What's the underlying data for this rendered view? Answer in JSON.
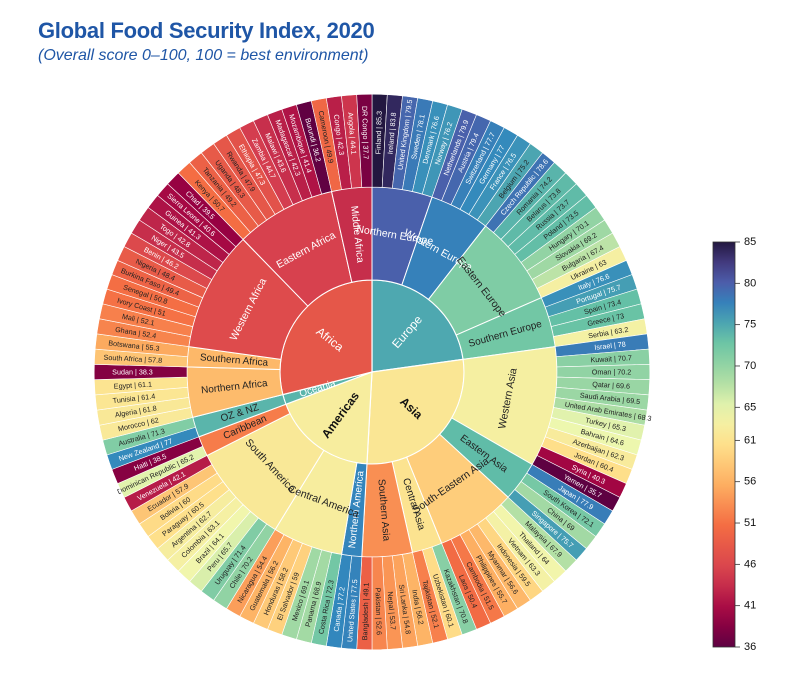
{
  "title": "Global Food Security Index, 2020",
  "subtitle": "(Overall score 0–100, 100 = best environment)",
  "chart_data": {
    "type": "sunburst",
    "title": "Global Food Security Index, 2020",
    "subtitle": "(Overall score 0–100, 100 = best environment)",
    "color_scale": {
      "min": 36,
      "max": 85,
      "ticks": [
        36,
        41,
        46,
        51,
        56,
        61,
        65,
        70,
        75,
        80,
        85
      ]
    },
    "continents": [
      {
        "name": "Europe",
        "regions": [
          {
            "name": "Northern Europe",
            "countries": [
              [
                "Finland",
                85.3
              ],
              [
                "Ireland",
                83.8
              ],
              [
                "United Kingdom",
                79.5
              ],
              [
                "Sweden",
                78.1
              ],
              [
                "Denmark",
                76.6
              ],
              [
                "Norway",
                76.2
              ]
            ]
          },
          {
            "name": "Western Europe",
            "countries": [
              [
                "Netherlands",
                79.9
              ],
              [
                "Austria",
                79.4
              ],
              [
                "Switzerland",
                77.7
              ],
              [
                "Germany",
                77
              ],
              [
                "France",
                76.5
              ],
              [
                "Belgium",
                75.2
              ]
            ]
          },
          {
            "name": "Eastern Europe",
            "countries": [
              [
                "Czech Republic",
                78.6
              ],
              [
                "Romania",
                74.2
              ],
              [
                "Belarus",
                73.8
              ],
              [
                "Russia",
                73.7
              ],
              [
                "Poland",
                73.5
              ],
              [
                "Hungary",
                70.1
              ],
              [
                "Slovakia",
                69.2
              ],
              [
                "Bulgaria",
                67.4
              ],
              [
                "Ukraine",
                63
              ]
            ]
          },
          {
            "name": "Southern Europe",
            "countries": [
              [
                "Italy",
                76.6
              ],
              [
                "Portugal",
                75.7
              ],
              [
                "Spain",
                73.4
              ],
              [
                "Greece",
                73
              ],
              [
                "Serbia",
                63.2
              ]
            ]
          }
        ]
      },
      {
        "name": "Asia",
        "regions": [
          {
            "name": "Western Asia",
            "countries": [
              [
                "Israel",
                78
              ],
              [
                "Kuwait",
                70.7
              ],
              [
                "Oman",
                70.2
              ],
              [
                "Qatar",
                69.6
              ],
              [
                "Saudi Arabia",
                69.5
              ],
              [
                "United Arab Emirates",
                68.3
              ],
              [
                "Turkey",
                65.3
              ],
              [
                "Bahrain",
                64.6
              ],
              [
                "Azerbaijan",
                62.3
              ],
              [
                "Jordan",
                60.4
              ],
              [
                "Syria",
                40.3
              ],
              [
                "Yemen",
                35.7
              ]
            ]
          },
          {
            "name": "Eastern Asia",
            "countries": [
              [
                "Japan",
                77.9
              ],
              [
                "South Korea",
                72.1
              ],
              [
                "China",
                69
              ],
              [
                "Singapore",
                75.7
              ]
            ]
          },
          {
            "name": "South-Eastern Asia",
            "countries": [
              [
                "Malaysia",
                67.9
              ],
              [
                "Thailand",
                64
              ],
              [
                "Vietnam",
                63.3
              ],
              [
                "Indonesia",
                59.5
              ],
              [
                "Myanmar",
                56.6
              ],
              [
                "Philippines",
                55.7
              ],
              [
                "Cambodia",
                51.5
              ],
              [
                "Laos",
                50.4
              ]
            ]
          },
          {
            "name": "Central Asia",
            "countries": [
              [
                "Kazakhstan",
                70.8
              ],
              [
                "Uzbekistan",
                60.1
              ],
              [
                "Tajikistan",
                52.1
              ]
            ]
          },
          {
            "name": "Southern Asia",
            "countries": [
              [
                "India",
                56.2
              ],
              [
                "Sri Lanka",
                54.8
              ],
              [
                "Nepal",
                53.7
              ],
              [
                "Pakistan",
                52.6
              ],
              [
                "Bangladesh",
                49.1
              ]
            ]
          }
        ]
      },
      {
        "name": "Americas",
        "regions": [
          {
            "name": "Northern America",
            "countries": [
              [
                "United States",
                77.5
              ],
              [
                "Canada",
                77.2
              ]
            ]
          },
          {
            "name": "Central America",
            "countries": [
              [
                "Costa Rica",
                72.3
              ],
              [
                "Panama",
                68.9
              ],
              [
                "Mexico",
                69.1
              ],
              [
                "El Salvador",
                59
              ],
              [
                "Honduras",
                58.2
              ],
              [
                "Guatemala",
                56.2
              ],
              [
                "Nicaragua",
                54.4
              ]
            ]
          },
          {
            "name": "South America",
            "countries": [
              [
                "Chile",
                70.2
              ],
              [
                "Uruguay",
                71.4
              ],
              [
                "Peru",
                65.7
              ],
              [
                "Brazil",
                64.1
              ],
              [
                "Colombia",
                63.1
              ],
              [
                "Argentina",
                62.7
              ],
              [
                "Paraguay",
                60.5
              ],
              [
                "Bolivia",
                60
              ],
              [
                "Ecuador",
                57.9
              ],
              [
                "Venezuela",
                42.1
              ]
            ]
          },
          {
            "name": "Caribbean",
            "countries": [
              [
                "Dominican Republic",
                65.2
              ],
              [
                "Haiti",
                38.5
              ]
            ]
          }
        ]
      },
      {
        "name": "Oceania",
        "regions": [
          {
            "name": "OZ & NZ",
            "countries": [
              [
                "New Zealand",
                77
              ],
              [
                "Australia",
                71.3
              ]
            ]
          }
        ]
      },
      {
        "name": "Africa",
        "regions": [
          {
            "name": "Northern Africa",
            "countries": [
              [
                "Morocco",
                62
              ],
              [
                "Algeria",
                61.8
              ],
              [
                "Tunisia",
                61.4
              ],
              [
                "Egypt",
                61.1
              ],
              [
                "Sudan",
                38.3
              ]
            ]
          },
          {
            "name": "Southern Africa",
            "countries": [
              [
                "South Africa",
                57.8
              ],
              [
                "Botswana",
                55.3
              ]
            ]
          },
          {
            "name": "Western Africa",
            "countries": [
              [
                "Ghana",
                52.4
              ],
              [
                "Mali",
                52.1
              ],
              [
                "Ivory Coast",
                51
              ],
              [
                "Senegal",
                50.8
              ],
              [
                "Burkina Faso",
                49.4
              ],
              [
                "Nigeria",
                48.4
              ],
              [
                "Benin",
                46.2
              ],
              [
                "Niger",
                43.5
              ],
              [
                "Togo",
                42.8
              ],
              [
                "Guinea",
                41.3
              ],
              [
                "Sierra Leone",
                40.6
              ],
              [
                "Chad",
                39.5
              ]
            ]
          },
          {
            "name": "Eastern Africa",
            "countries": [
              [
                "Kenya",
                50.7
              ],
              [
                "Tanzania",
                49.2
              ],
              [
                "Uganda",
                48.3
              ],
              [
                "Rwanda",
                47.9
              ],
              [
                "Ethiopia",
                47.3
              ],
              [
                "Zambia",
                44.7
              ],
              [
                "Malawi",
                43.6
              ],
              [
                "Madagascar",
                42.3
              ],
              [
                "Mozambique",
                41.4
              ],
              [
                "Burundi",
                36.2
              ]
            ]
          },
          {
            "name": "Middle Africa",
            "countries": [
              [
                "Cameroon",
                49.9
              ],
              [
                "Congo",
                42.3
              ],
              [
                "Angola",
                44.1
              ],
              [
                "DR Congo",
                37.7
              ]
            ]
          }
        ]
      }
    ]
  }
}
